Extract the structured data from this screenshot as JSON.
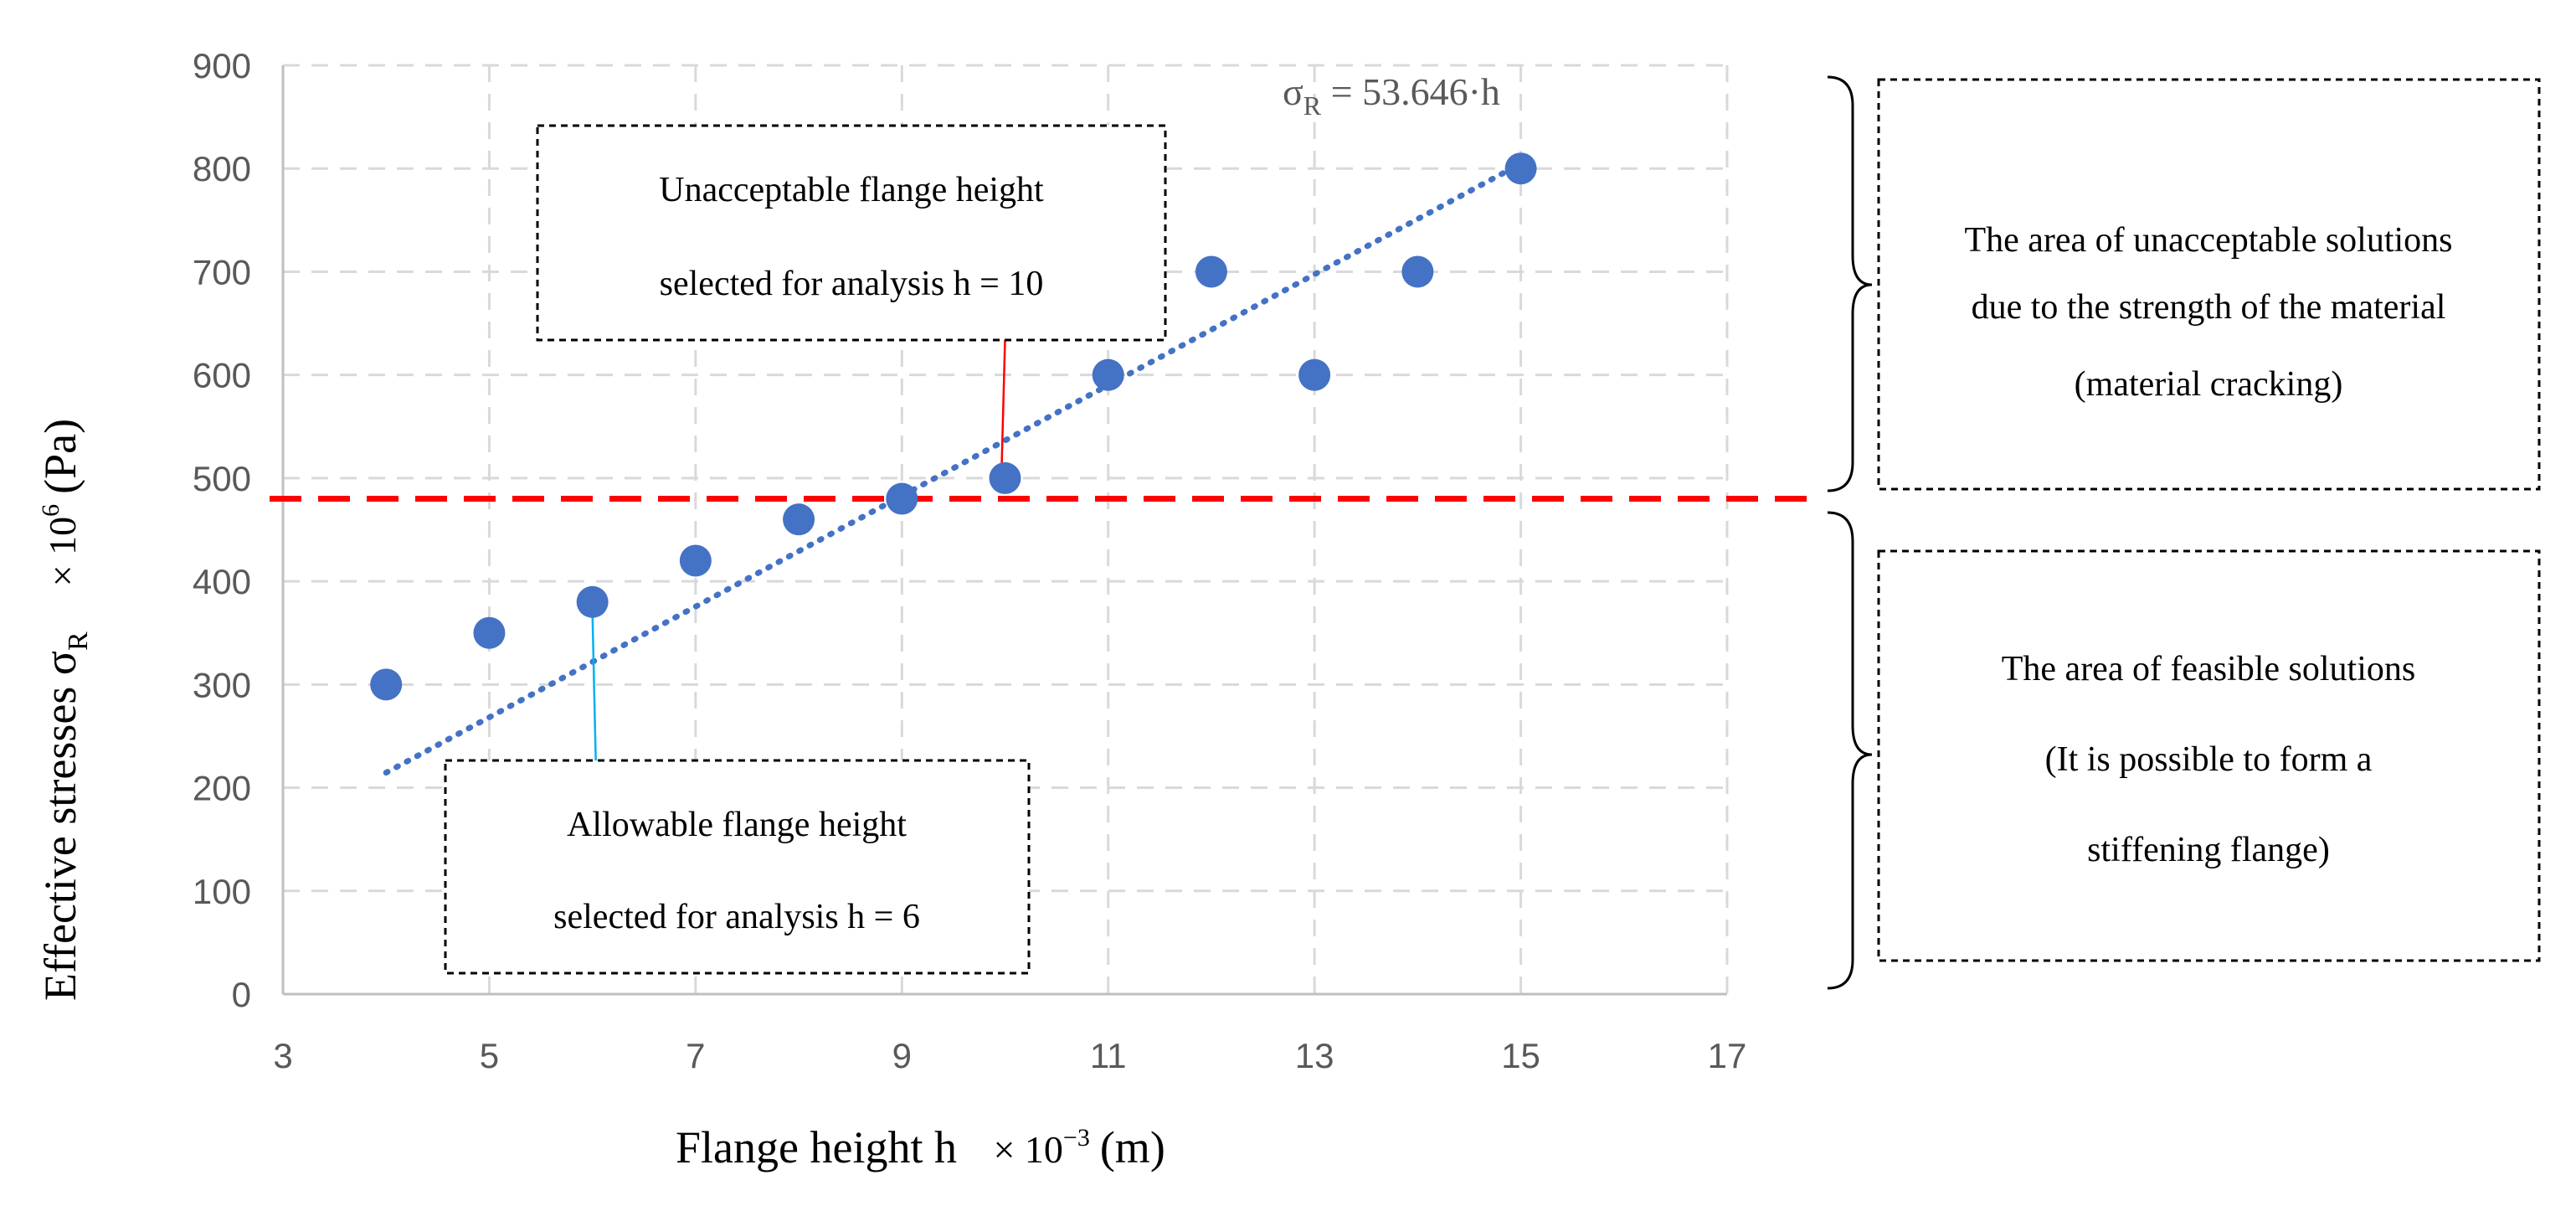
{
  "chart_data": {
    "type": "scatter",
    "series": [
      {
        "name": "Effective stresses",
        "x": [
          4,
          5,
          6,
          7,
          8,
          9,
          10,
          11,
          12,
          13,
          14,
          15
        ],
        "y": [
          300,
          350,
          380,
          420,
          460,
          480,
          500,
          600,
          700,
          600,
          700,
          800
        ],
        "color": "#4472C4"
      }
    ],
    "trendline": {
      "type": "linear",
      "slope": 53.646,
      "x_range": [
        4,
        15
      ],
      "color": "#4472C4",
      "style": "dotted"
    },
    "threshold": {
      "y": 480,
      "color": "#FF0000",
      "style": "dashed"
    },
    "xlim": [
      3,
      17
    ],
    "ylim": [
      0,
      900
    ],
    "xticks": [
      "3",
      "5",
      "7",
      "9",
      "11",
      "13",
      "15",
      "17"
    ],
    "yticks": [
      "0",
      "100",
      "200",
      "300",
      "400",
      "500",
      "600",
      "700",
      "800",
      "900"
    ],
    "xlabel": {
      "text": "Flange height h",
      "unit_prefix": "× 10",
      "unit_exp": "−3",
      "unit_suffix": "(m)"
    },
    "ylabel": {
      "text": "Effective stresses σ",
      "sub": "R",
      "unit_prefix": "× 10",
      "unit_exp": "6",
      "unit_suffix": "(Pa)"
    },
    "equation": {
      "sym": "σ",
      "sub": "R",
      "rest": " = 53.646·h"
    },
    "grid": true
  },
  "annotations": {
    "unacceptable_box": {
      "line1": "Unacceptable flange height",
      "line2": "selected for analysis h = 10",
      "target_x": 10,
      "pointer_color": "#FF0000"
    },
    "allowable_box": {
      "line1": "Allowable flange height",
      "line2": "selected for analysis h = 6",
      "target_x": 6,
      "pointer_color": "#00B0F0"
    },
    "unacceptable_area": {
      "line1": "The area of unacceptable solutions",
      "line2": "due to the strength of the material",
      "line3": "(material cracking)"
    },
    "feasible_area": {
      "line1": "The area of feasible solutions",
      "line2": "(It is possible to form a",
      "line3": "stiffening flange)"
    }
  }
}
